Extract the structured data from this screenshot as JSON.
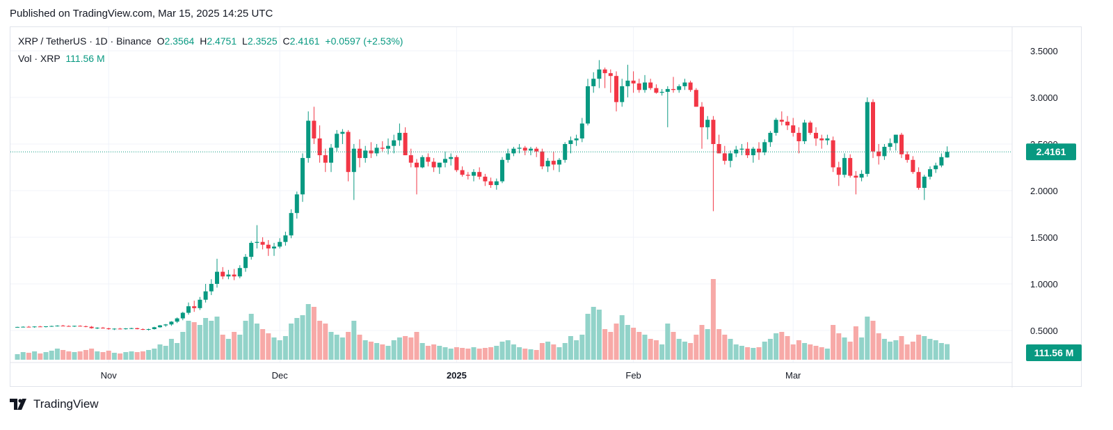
{
  "header": {
    "published": "Published on TradingView.com, Mar 15, 2025 14:25 UTC"
  },
  "legend": {
    "symbol": "XRP / TetherUS · 1D · Binance",
    "open_label": "O",
    "open": "2.3564",
    "high_label": "H",
    "high": "2.4751",
    "low_label": "L",
    "low": "2.3525",
    "close_label": "C",
    "close": "2.4161",
    "change": "+0.0597 (+2.53%)",
    "volume_label": "Vol · XRP",
    "volume": "111.56 M"
  },
  "footer": {
    "logo_text": "TradingView"
  },
  "colors": {
    "up": "#089981",
    "down": "#f23645",
    "up_volume": "#92d3c9",
    "down_volume": "#f7a9a7",
    "grid": "#f0f3fa",
    "text": "#131722"
  },
  "chart_data": {
    "type": "candlestick",
    "title": "XRP / TetherUS · 1D · Binance",
    "ylim": [
      0,
      3.65
    ],
    "yticks": [
      "3.5000",
      "3.0000",
      "2.5000",
      "2.0000",
      "1.5000",
      "1.0000",
      "0.5000"
    ],
    "ytick_values": [
      3.5,
      3.0,
      2.5,
      2.0,
      1.5,
      1.0,
      0.5
    ],
    "x_labels": [
      {
        "label": "Nov",
        "day": 16,
        "bold": false
      },
      {
        "label": "Dec",
        "day": 46,
        "bold": false
      },
      {
        "label": "2025",
        "day": 77,
        "bold": true
      },
      {
        "label": "Feb",
        "day": 108,
        "bold": false
      },
      {
        "label": "Mar",
        "day": 136,
        "bold": false
      }
    ],
    "price_badge": "2.4161",
    "price_badge_value": 2.4161,
    "volume_badge": "111.56 M",
    "volume_badge_value": 111.56,
    "grid": true,
    "candles_note": "daily OHLC, day index 0 = Oct 16 2024; volume in millions XRP",
    "candles": [
      [
        0,
        0.535,
        0.54,
        0.53,
        0.538,
        40
      ],
      [
        1,
        0.538,
        0.545,
        0.533,
        0.54,
        55
      ],
      [
        2,
        0.54,
        0.548,
        0.535,
        0.536,
        50
      ],
      [
        3,
        0.536,
        0.545,
        0.53,
        0.543,
        60
      ],
      [
        4,
        0.543,
        0.55,
        0.538,
        0.54,
        45
      ],
      [
        5,
        0.54,
        0.546,
        0.533,
        0.545,
        55
      ],
      [
        6,
        0.545,
        0.552,
        0.54,
        0.548,
        65
      ],
      [
        7,
        0.548,
        0.556,
        0.542,
        0.552,
        80
      ],
      [
        8,
        0.552,
        0.56,
        0.545,
        0.548,
        70
      ],
      [
        9,
        0.548,
        0.555,
        0.54,
        0.545,
        60
      ],
      [
        10,
        0.545,
        0.552,
        0.538,
        0.55,
        55
      ],
      [
        11,
        0.55,
        0.556,
        0.542,
        0.546,
        60
      ],
      [
        12,
        0.546,
        0.552,
        0.535,
        0.54,
        70
      ],
      [
        13,
        0.54,
        0.548,
        0.52,
        0.525,
        80
      ],
      [
        14,
        0.525,
        0.535,
        0.515,
        0.53,
        60
      ],
      [
        15,
        0.53,
        0.538,
        0.52,
        0.523,
        55
      ],
      [
        16,
        0.523,
        0.53,
        0.508,
        0.515,
        65
      ],
      [
        17,
        0.515,
        0.524,
        0.505,
        0.52,
        50
      ],
      [
        18,
        0.52,
        0.528,
        0.512,
        0.518,
        45
      ],
      [
        19,
        0.518,
        0.526,
        0.51,
        0.522,
        55
      ],
      [
        20,
        0.522,
        0.53,
        0.515,
        0.525,
        60
      ],
      [
        21,
        0.525,
        0.53,
        0.512,
        0.515,
        55
      ],
      [
        22,
        0.515,
        0.522,
        0.505,
        0.51,
        60
      ],
      [
        23,
        0.51,
        0.52,
        0.5,
        0.515,
        70
      ],
      [
        24,
        0.515,
        0.54,
        0.51,
        0.535,
        80
      ],
      [
        25,
        0.535,
        0.56,
        0.53,
        0.555,
        110
      ],
      [
        26,
        0.555,
        0.57,
        0.54,
        0.565,
        100
      ],
      [
        27,
        0.565,
        0.6,
        0.55,
        0.595,
        150
      ],
      [
        28,
        0.595,
        0.64,
        0.58,
        0.63,
        120
      ],
      [
        29,
        0.63,
        0.7,
        0.61,
        0.69,
        200
      ],
      [
        30,
        0.69,
        0.8,
        0.67,
        0.76,
        280
      ],
      [
        31,
        0.76,
        0.82,
        0.7,
        0.74,
        270
      ],
      [
        32,
        0.74,
        0.86,
        0.72,
        0.83,
        250
      ],
      [
        33,
        0.83,
        1.0,
        0.8,
        0.92,
        300
      ],
      [
        34,
        0.92,
        1.05,
        0.88,
        1.0,
        280
      ],
      [
        35,
        1.0,
        1.27,
        0.96,
        1.13,
        310
      ],
      [
        36,
        1.13,
        1.18,
        1.05,
        1.08,
        180
      ],
      [
        37,
        1.08,
        1.15,
        1.05,
        1.1,
        150
      ],
      [
        38,
        1.1,
        1.16,
        1.04,
        1.08,
        200
      ],
      [
        39,
        1.08,
        1.2,
        1.06,
        1.17,
        180
      ],
      [
        40,
        1.17,
        1.32,
        1.13,
        1.29,
        280
      ],
      [
        41,
        1.29,
        1.46,
        1.26,
        1.44,
        330
      ],
      [
        42,
        1.44,
        1.63,
        1.38,
        1.45,
        260
      ],
      [
        43,
        1.45,
        1.5,
        1.37,
        1.42,
        220
      ],
      [
        44,
        1.42,
        1.47,
        1.3,
        1.38,
        190
      ],
      [
        45,
        1.38,
        1.44,
        1.3,
        1.4,
        160
      ],
      [
        46,
        1.4,
        1.49,
        1.38,
        1.45,
        140
      ],
      [
        47,
        1.45,
        1.56,
        1.41,
        1.52,
        170
      ],
      [
        48,
        1.52,
        1.8,
        1.49,
        1.76,
        260
      ],
      [
        49,
        1.76,
        1.99,
        1.7,
        1.96,
        300
      ],
      [
        50,
        1.96,
        2.4,
        1.88,
        2.35,
        320
      ],
      [
        51,
        2.35,
        2.85,
        2.3,
        2.75,
        400
      ],
      [
        52,
        2.75,
        2.9,
        2.5,
        2.56,
        380
      ],
      [
        53,
        2.56,
        2.7,
        2.3,
        2.38,
        280
      ],
      [
        54,
        2.38,
        2.45,
        2.2,
        2.3,
        260
      ],
      [
        55,
        2.3,
        2.5,
        2.2,
        2.46,
        200
      ],
      [
        56,
        2.46,
        2.65,
        2.42,
        2.61,
        180
      ],
      [
        57,
        2.61,
        2.66,
        2.5,
        2.63,
        160
      ],
      [
        58,
        2.63,
        2.65,
        2.1,
        2.2,
        200
      ],
      [
        59,
        2.2,
        2.5,
        1.9,
        2.45,
        280
      ],
      [
        60,
        2.45,
        2.55,
        2.25,
        2.35,
        180
      ],
      [
        61,
        2.35,
        2.48,
        2.3,
        2.43,
        140
      ],
      [
        62,
        2.43,
        2.52,
        2.35,
        2.4,
        130
      ],
      [
        63,
        2.4,
        2.5,
        2.37,
        2.46,
        120
      ],
      [
        64,
        2.46,
        2.53,
        2.42,
        2.45,
        110
      ],
      [
        65,
        2.45,
        2.56,
        2.39,
        2.48,
        100
      ],
      [
        66,
        2.48,
        2.6,
        2.4,
        2.54,
        140
      ],
      [
        67,
        2.54,
        2.72,
        2.48,
        2.62,
        160
      ],
      [
        68,
        2.62,
        2.68,
        2.38,
        2.38,
        170
      ],
      [
        69,
        2.38,
        2.45,
        2.25,
        2.3,
        160
      ],
      [
        70,
        2.3,
        2.34,
        1.96,
        2.25,
        200
      ],
      [
        71,
        2.25,
        2.38,
        2.24,
        2.36,
        120
      ],
      [
        72,
        2.36,
        2.4,
        2.26,
        2.31,
        100
      ],
      [
        73,
        2.31,
        2.35,
        2.2,
        2.25,
        110
      ],
      [
        74,
        2.25,
        2.3,
        2.18,
        2.3,
        100
      ],
      [
        75,
        2.3,
        2.42,
        2.25,
        2.34,
        90
      ],
      [
        76,
        2.34,
        2.4,
        2.27,
        2.36,
        80
      ],
      [
        77,
        2.36,
        2.38,
        2.2,
        2.22,
        90
      ],
      [
        78,
        2.22,
        2.26,
        2.15,
        2.17,
        85
      ],
      [
        79,
        2.17,
        2.2,
        2.12,
        2.16,
        80
      ],
      [
        80,
        2.16,
        2.23,
        2.1,
        2.2,
        90
      ],
      [
        81,
        2.2,
        2.25,
        2.12,
        2.15,
        80
      ],
      [
        82,
        2.15,
        2.18,
        2.05,
        2.1,
        85
      ],
      [
        83,
        2.1,
        2.14,
        2.03,
        2.06,
        90
      ],
      [
        84,
        2.06,
        2.13,
        2.01,
        2.1,
        100
      ],
      [
        85,
        2.1,
        2.36,
        2.08,
        2.33,
        130
      ],
      [
        86,
        2.33,
        2.45,
        2.3,
        2.4,
        140
      ],
      [
        87,
        2.4,
        2.47,
        2.37,
        2.45,
        110
      ],
      [
        88,
        2.45,
        2.5,
        2.4,
        2.46,
        90
      ],
      [
        89,
        2.46,
        2.48,
        2.38,
        2.43,
        80
      ],
      [
        90,
        2.43,
        2.47,
        2.38,
        2.45,
        75
      ],
      [
        91,
        2.45,
        2.47,
        2.36,
        2.42,
        70
      ],
      [
        92,
        2.42,
        2.45,
        2.23,
        2.26,
        120
      ],
      [
        93,
        2.26,
        2.35,
        2.2,
        2.32,
        130
      ],
      [
        94,
        2.32,
        2.42,
        2.22,
        2.28,
        110
      ],
      [
        95,
        2.28,
        2.35,
        2.2,
        2.33,
        90
      ],
      [
        96,
        2.33,
        2.52,
        2.3,
        2.5,
        120
      ],
      [
        97,
        2.5,
        2.58,
        2.4,
        2.54,
        170
      ],
      [
        98,
        2.54,
        2.6,
        2.48,
        2.56,
        140
      ],
      [
        99,
        2.56,
        2.78,
        2.52,
        2.72,
        180
      ],
      [
        100,
        2.72,
        3.2,
        2.7,
        3.12,
        330
      ],
      [
        101,
        3.12,
        3.27,
        3.05,
        3.2,
        380
      ],
      [
        102,
        3.2,
        3.4,
        3.1,
        3.3,
        360
      ],
      [
        103,
        3.3,
        3.32,
        3.1,
        3.26,
        220
      ],
      [
        104,
        3.26,
        3.3,
        3.05,
        3.23,
        200
      ],
      [
        105,
        3.23,
        3.28,
        2.85,
        2.95,
        260
      ],
      [
        106,
        2.95,
        3.2,
        2.9,
        3.12,
        320
      ],
      [
        107,
        3.12,
        3.35,
        3.0,
        3.18,
        250
      ],
      [
        108,
        3.18,
        3.28,
        3.05,
        3.15,
        230
      ],
      [
        109,
        3.15,
        3.2,
        3.05,
        3.08,
        200
      ],
      [
        110,
        3.08,
        3.24,
        3.05,
        3.16,
        180
      ],
      [
        111,
        3.16,
        3.2,
        3.08,
        3.1,
        150
      ],
      [
        112,
        3.1,
        3.14,
        3.04,
        3.05,
        140
      ],
      [
        113,
        3.05,
        3.09,
        3.02,
        3.06,
        110
      ],
      [
        114,
        3.06,
        3.12,
        2.68,
        3.09,
        260
      ],
      [
        115,
        3.09,
        3.22,
        3.05,
        3.08,
        200
      ],
      [
        116,
        3.08,
        3.14,
        3.05,
        3.12,
        150
      ],
      [
        117,
        3.12,
        3.2,
        3.08,
        3.16,
        130
      ],
      [
        118,
        3.16,
        3.18,
        3.06,
        3.08,
        120
      ],
      [
        119,
        3.08,
        3.1,
        2.9,
        2.9,
        180
      ],
      [
        120,
        2.9,
        2.95,
        2.45,
        2.68,
        250
      ],
      [
        121,
        2.68,
        2.8,
        2.55,
        2.76,
        220
      ],
      [
        122,
        2.76,
        2.8,
        1.78,
        2.5,
        580
      ],
      [
        123,
        2.5,
        2.6,
        2.4,
        2.4,
        220
      ],
      [
        124,
        2.4,
        2.48,
        2.28,
        2.32,
        180
      ],
      [
        125,
        2.32,
        2.43,
        2.25,
        2.4,
        150
      ],
      [
        126,
        2.4,
        2.48,
        2.36,
        2.44,
        110
      ],
      [
        127,
        2.44,
        2.5,
        2.38,
        2.45,
        100
      ],
      [
        128,
        2.45,
        2.52,
        2.35,
        2.38,
        90
      ],
      [
        129,
        2.38,
        2.47,
        2.3,
        2.45,
        85
      ],
      [
        130,
        2.45,
        2.52,
        2.33,
        2.41,
        90
      ],
      [
        131,
        2.41,
        2.55,
        2.38,
        2.52,
        130
      ],
      [
        132,
        2.52,
        2.64,
        2.47,
        2.62,
        150
      ],
      [
        133,
        2.62,
        2.78,
        2.59,
        2.76,
        190
      ],
      [
        134,
        2.76,
        2.85,
        2.7,
        2.74,
        200
      ],
      [
        135,
        2.74,
        2.8,
        2.65,
        2.7,
        170
      ],
      [
        136,
        2.7,
        2.78,
        2.58,
        2.62,
        110
      ],
      [
        137,
        2.62,
        2.68,
        2.4,
        2.53,
        140
      ],
      [
        138,
        2.53,
        2.76,
        2.5,
        2.73,
        120
      ],
      [
        139,
        2.73,
        2.75,
        2.6,
        2.62,
        110
      ],
      [
        140,
        2.62,
        2.68,
        2.48,
        2.56,
        100
      ],
      [
        141,
        2.56,
        2.6,
        2.45,
        2.54,
        90
      ],
      [
        142,
        2.54,
        2.6,
        2.49,
        2.56,
        80
      ],
      [
        143,
        2.54,
        2.58,
        2.2,
        2.25,
        250
      ],
      [
        144,
        2.25,
        2.31,
        2.05,
        2.17,
        190
      ],
      [
        145,
        2.17,
        2.4,
        2.14,
        2.35,
        160
      ],
      [
        146,
        2.35,
        2.39,
        2.14,
        2.16,
        130
      ],
      [
        147,
        2.16,
        2.21,
        1.96,
        2.14,
        240
      ],
      [
        148,
        2.14,
        2.22,
        2.1,
        2.18,
        160
      ],
      [
        149,
        2.18,
        3.0,
        2.15,
        2.95,
        310
      ],
      [
        150,
        2.95,
        2.98,
        2.35,
        2.42,
        280
      ],
      [
        151,
        2.42,
        2.5,
        2.28,
        2.37,
        190
      ],
      [
        152,
        2.37,
        2.5,
        2.33,
        2.47,
        150
      ],
      [
        153,
        2.47,
        2.56,
        2.43,
        2.51,
        130
      ],
      [
        154,
        2.51,
        2.6,
        2.43,
        2.6,
        140
      ],
      [
        155,
        2.6,
        2.62,
        2.35,
        2.39,
        170
      ],
      [
        156,
        2.39,
        2.42,
        2.3,
        2.33,
        110
      ],
      [
        157,
        2.33,
        2.37,
        2.18,
        2.2,
        130
      ],
      [
        158,
        2.2,
        2.25,
        2.01,
        2.03,
        180
      ],
      [
        159,
        2.03,
        2.17,
        1.9,
        2.15,
        170
      ],
      [
        160,
        2.15,
        2.26,
        2.12,
        2.23,
        150
      ],
      [
        161,
        2.23,
        2.3,
        2.19,
        2.27,
        140
      ],
      [
        162,
        2.27,
        2.4,
        2.25,
        2.36,
        120
      ],
      [
        163,
        2.356,
        2.475,
        2.353,
        2.416,
        112
      ]
    ]
  }
}
